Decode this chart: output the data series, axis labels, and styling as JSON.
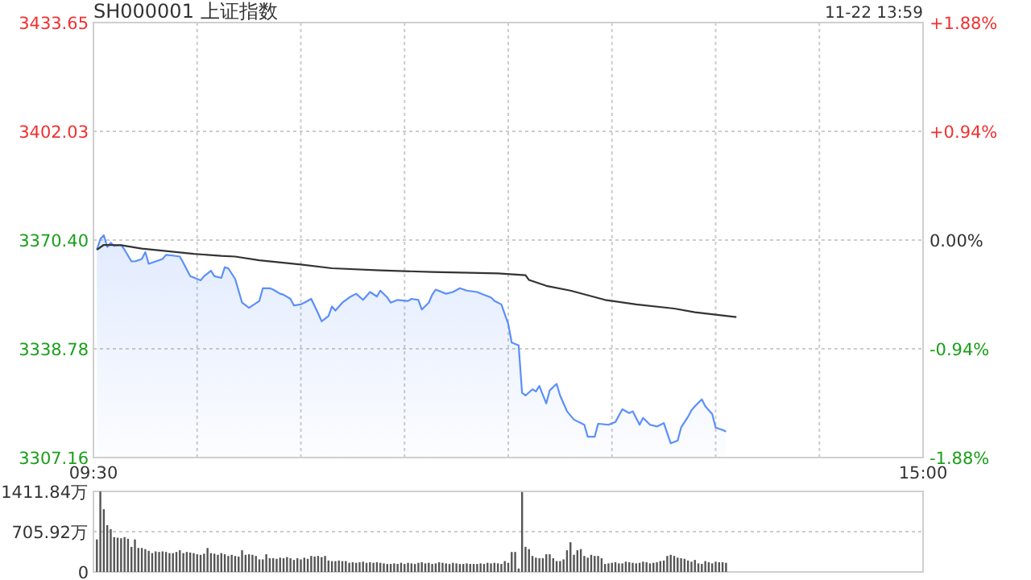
{
  "chart_data": [
    {
      "type": "line",
      "title": "SH000001 上证指数",
      "annotations": [
        "11-22 13:59"
      ],
      "categories": [
        "09:30",
        null,
        null,
        null,
        null,
        null,
        null,
        null,
        null,
        null,
        null,
        null,
        null,
        null,
        null,
        null,
        null,
        null,
        null,
        null,
        null,
        null,
        null,
        null,
        null,
        null,
        null,
        null,
        null,
        null,
        null,
        null,
        null,
        null,
        null,
        null,
        null,
        null,
        null,
        null,
        null,
        null,
        null,
        null,
        null,
        null,
        null,
        null,
        null,
        null,
        null,
        null,
        null,
        null,
        null,
        null,
        null,
        null,
        null,
        null,
        null,
        null,
        null,
        null,
        null,
        null,
        null,
        null,
        null,
        null,
        null,
        null,
        null,
        null,
        null,
        null,
        null,
        null,
        null,
        null,
        null,
        null,
        null,
        null,
        null,
        null,
        null,
        null,
        null,
        null,
        null,
        null,
        null,
        null,
        null,
        null,
        null,
        null,
        null,
        null,
        null,
        null,
        null,
        null,
        null,
        null,
        null,
        null,
        null,
        null,
        null,
        null,
        null,
        null,
        null,
        null,
        null,
        null,
        null,
        null,
        null,
        null,
        null,
        null,
        null,
        null,
        null,
        null,
        null,
        null,
        null,
        null,
        null,
        null,
        null,
        null,
        null,
        null,
        null,
        null,
        null,
        null,
        null,
        null,
        null,
        null,
        null,
        null,
        null,
        null,
        null,
        null,
        null,
        null,
        null,
        null,
        null,
        null,
        null,
        null,
        null,
        null,
        null,
        null,
        null,
        null,
        null,
        null,
        null,
        null,
        null,
        null,
        null,
        null,
        null,
        null,
        null,
        null,
        null,
        null,
        null,
        null,
        null,
        null,
        null,
        null,
        null,
        null,
        null,
        null,
        null,
        null,
        null,
        null,
        null,
        null,
        null,
        null,
        null,
        null,
        null,
        null,
        null,
        null,
        null,
        null,
        null,
        null,
        null,
        null,
        null,
        null,
        null,
        null,
        null,
        null,
        null,
        null,
        null,
        null,
        null,
        null,
        null,
        null,
        null,
        null,
        null,
        null,
        null,
        null,
        null,
        null,
        null,
        null,
        null,
        null,
        null,
        null,
        null,
        null,
        "15:00"
      ],
      "ylim": [
        3307.16,
        3433.65
      ],
      "yticks": [
        3307.16,
        3338.78,
        {
          "value": 3370.4,
          "label": "3370.40"
        },
        3402.03,
        3433.65
      ],
      "y2lim": [
        -1.88,
        1.88
      ],
      "y2ticks": [
        {
          "value": -1.88,
          "label": "-1.88%"
        },
        {
          "value": -0.94,
          "label": "-0.94%"
        },
        {
          "value": 0,
          "label": "0.00%"
        },
        {
          "value": 0.94,
          "label": "+0.94%"
        },
        {
          "value": 1.88,
          "label": "+1.88%"
        }
      ],
      "grid": true,
      "series": [
        {
          "type": "area",
          "color": "#5b8ff9",
          "values": [
            null,
            3367.6,
            3370.7,
            3371.8,
            3368.4,
            3369.6,
            3368.7,
            null,
            3369.0,
            3367.6,
            null,
            3364.2,
            3364.2,
            null,
            3364.9,
            3366.9,
            3363.5,
            null,
            3364.2,
            null,
            3364.9,
            3366.1,
            null,
            3365.9,
            null,
            3365.6,
            3363.8,
            null,
            3359.9,
            null,
            null,
            3358.7,
            3359.9,
            null,
            3361.5,
            3359.9,
            null,
            3359.4,
            3362.5,
            3362.2,
            null,
            3359.1,
            null,
            3352.2,
            null,
            3350.7,
            null,
            null,
            3352.7,
            3356.4,
            null,
            3356.4,
            3356.0,
            null,
            3354.8,
            3354.5,
            null,
            3353.3,
            3351.4,
            null,
            3351.7,
            3352.2,
            null,
            3353.3,
            null,
            3349.1,
            3346.8,
            null,
            3348.3,
            3351.1,
            3349.9,
            null,
            3352.2,
            null,
            3353.7,
            null,
            3354.8,
            null,
            3353.0,
            null,
            3355.3,
            null,
            3354.0,
            3355.7,
            null,
            3353.7,
            3352.2,
            null,
            3353.0,
            null,
            null,
            3352.7,
            3353.3,
            null,
            3353.0,
            3350.2,
            null,
            3352.2,
            3354.5,
            3356.0,
            null,
            null,
            3354.8,
            null,
            3355.3,
            null,
            3356.4,
            null,
            3355.7,
            null,
            null,
            3355.3,
            null,
            3354.5,
            null,
            3353.7,
            3352.7,
            null,
            3351.7,
            null,
            3346.0,
            3340.6,
            null,
            3339.8,
            3326.0,
            3325.2,
            null,
            3327.0,
            3326.4,
            3328.0,
            null,
            3322.9,
            3326.7,
            null,
            3328.6,
            3325.2,
            null,
            3320.6,
            null,
            3318.2,
            null,
            null,
            3316.7,
            3313.2,
            null,
            3313.2,
            3317.0,
            null,
            null,
            3316.7,
            null,
            3317.5,
            null,
            3321.2,
            null,
            3320.1,
            3320.6,
            null,
            3316.7,
            3318.7,
            null,
            3316.7,
            null,
            3316.2,
            null,
            3317.2,
            null,
            3311.3,
            null,
            3312.1,
            3315.9,
            null,
            3319.0,
            3320.9,
            3322.1,
            null,
            3324.1,
            3322.1,
            null,
            3319.8,
            3315.9,
            null,
            3315.2,
            3314.7,
            null,
            null,
            null,
            null,
            null,
            null,
            null,
            null,
            null,
            null,
            null,
            null,
            null,
            null,
            null,
            null,
            null,
            null,
            null,
            null,
            null,
            null,
            null,
            null,
            null,
            null,
            null,
            null,
            null,
            null,
            null,
            null,
            null,
            null,
            null,
            null,
            null,
            null,
            null,
            null,
            null,
            null,
            null,
            null,
            null,
            null,
            null,
            null,
            null,
            null,
            null,
            null,
            null,
            null,
            null,
            null,
            null
          ]
        },
        {
          "type": "line",
          "color": "#333333",
          "values": [
            null,
            3367.6,
            null,
            3369.0,
            null,
            null,
            null,
            null,
            3368.9,
            null,
            null,
            null,
            null,
            null,
            3367.9,
            null,
            null,
            null,
            null,
            null,
            null,
            3367.2,
            null,
            null,
            null,
            null,
            null,
            null,
            null,
            3366.4,
            null,
            null,
            null,
            null,
            null,
            null,
            null,
            3365.8,
            null,
            null,
            null,
            3365.6,
            null,
            null,
            null,
            null,
            null,
            null,
            3364.5,
            null,
            null,
            null,
            null,
            null,
            null,
            null,
            null,
            null,
            null,
            null,
            3363.3,
            null,
            null,
            null,
            null,
            null,
            null,
            null,
            null,
            3362.2,
            null,
            null,
            null,
            null,
            null,
            null,
            null,
            null,
            null,
            null,
            null,
            null,
            null,
            3361.6,
            null,
            null,
            null,
            null,
            null,
            null,
            null,
            null,
            null,
            null,
            null,
            null,
            null,
            null,
            3361.1,
            null,
            null,
            null,
            null,
            null,
            null,
            null,
            null,
            null,
            null,
            null,
            null,
            null,
            null,
            null,
            null,
            null,
            null,
            3360.7,
            null,
            null,
            null,
            null,
            null,
            null,
            null,
            3360.2,
            3358.8,
            null,
            null,
            null,
            null,
            3357.1,
            null,
            null,
            null,
            null,
            null,
            null,
            3355.7,
            null,
            null,
            null,
            null,
            null,
            null,
            null,
            null,
            null,
            3353.0,
            null,
            null,
            null,
            null,
            null,
            null,
            null,
            null,
            3351.7,
            null,
            null,
            null,
            null,
            null,
            null,
            null,
            null,
            null,
            null,
            3350.5,
            null,
            null,
            null,
            null,
            null,
            3349.4,
            null,
            null,
            null,
            null,
            null,
            null,
            null,
            null,
            null,
            null,
            null,
            3348.0,
            null,
            null,
            null,
            null,
            null,
            null,
            null,
            null,
            null,
            null,
            null,
            null,
            null,
            null,
            null,
            null,
            null,
            null,
            null,
            null,
            null,
            null,
            null,
            null,
            null,
            null,
            null,
            null,
            null,
            null,
            null,
            null,
            null,
            null,
            null,
            null,
            null,
            null,
            null,
            null,
            null,
            null,
            null,
            null,
            null,
            null,
            null,
            null,
            null,
            null,
            null,
            null,
            null,
            null
          ]
        }
      ]
    },
    {
      "type": "bar",
      "color": "#555555",
      "tick_labels": "y",
      "grid": "y",
      "ylim": [
        0,
        1411.84
      ],
      "yticks": [
        0,
        {
          "value": 705.92,
          "label": "705.92万"
        },
        {
          "value": 1411.84,
          "label": "1411.84万"
        }
      ],
      "categories": [
        null,
        null,
        null,
        null,
        null,
        null,
        null,
        null,
        null,
        null,
        null,
        null,
        null,
        null,
        null,
        null,
        null,
        null,
        null,
        null,
        null,
        null,
        null,
        null,
        null,
        null,
        null,
        null,
        null,
        null,
        null,
        null,
        null,
        null,
        null,
        null,
        null,
        null,
        null,
        null,
        null,
        null,
        null,
        null,
        null,
        null,
        null,
        null,
        null,
        null,
        null,
        null,
        null,
        null,
        null,
        null,
        null,
        null,
        null,
        null,
        null,
        null,
        null,
        null,
        null,
        null,
        null,
        null,
        null,
        null,
        null,
        null,
        null,
        null,
        null,
        null,
        null,
        null,
        null,
        null,
        null,
        null,
        null,
        null,
        null,
        null,
        null,
        null,
        null,
        null,
        null,
        null,
        null,
        null,
        null,
        null,
        null,
        null,
        null,
        null,
        null,
        null,
        null,
        null,
        null,
        null,
        null,
        null,
        null,
        null,
        null,
        null,
        null,
        null,
        null,
        null,
        null,
        null,
        null,
        null,
        null,
        null,
        null,
        null,
        null,
        null,
        null,
        null,
        null,
        null,
        null,
        null,
        null,
        null,
        null,
        null,
        null,
        null,
        null,
        null,
        null,
        null,
        null,
        null,
        null,
        null,
        null,
        null,
        null,
        null,
        null,
        null,
        null,
        null,
        null,
        null,
        null,
        null,
        null,
        null,
        null,
        null,
        null,
        null,
        null,
        null,
        null,
        null,
        null,
        null,
        null,
        null,
        null,
        null,
        null,
        null,
        null,
        null,
        null,
        null,
        null,
        null,
        null,
        null,
        null,
        null,
        null,
        null,
        null,
        null,
        null,
        null,
        null,
        null,
        null,
        null,
        null,
        null,
        null,
        null,
        null,
        null,
        null,
        null,
        null,
        null,
        null,
        null,
        null,
        null,
        null,
        null,
        null,
        null,
        null,
        null,
        null,
        null,
        null,
        null,
        null,
        null,
        null,
        null,
        null,
        null,
        null,
        null,
        null,
        null,
        null,
        null,
        null,
        null,
        null,
        null,
        null,
        null,
        null,
        null,
        null
      ],
      "values": [
        null,
        570,
        1410,
        1100,
        820,
        750,
        610,
        600,
        590,
        610,
        580,
        440,
        570,
        420,
        420,
        400,
        370,
        330,
        360,
        350,
        360,
        350,
        330,
        330,
        350,
        380,
        330,
        350,
        340,
        330,
        310,
        300,
        320,
        420,
        330,
        320,
        300,
        330,
        310,
        280,
        300,
        280,
        270,
        380,
        300,
        310,
        300,
        280,
        220,
        220,
        310,
        240,
        240,
        230,
        250,
        240,
        260,
        240,
        210,
        240,
        220,
        250,
        230,
        280,
        270,
        280,
        260,
        280,
        200,
        190,
        190,
        200,
        190,
        190,
        160,
        170,
        160,
        170,
        180,
        160,
        170,
        160,
        170,
        160,
        150,
        140,
        140,
        150,
        140,
        160,
        140,
        160,
        150,
        140,
        160,
        170,
        150,
        160,
        140,
        150,
        170,
        160,
        150,
        140,
        160,
        150,
        140,
        140,
        150,
        140,
        140,
        140,
        150,
        140,
        160,
        150,
        160,
        150,
        140,
        190,
        160,
        350,
        350,
        60,
        1400,
        440,
        400,
        280,
        250,
        240,
        240,
        310,
        310,
        240,
        190,
        190,
        220,
        380,
        520,
        300,
        380,
        400,
        280,
        250,
        300,
        280,
        280,
        240,
        140,
        150,
        160,
        170,
        150,
        150,
        180,
        170,
        160,
        150,
        160,
        180,
        170,
        150,
        160,
        170,
        190,
        200,
        280,
        300,
        280,
        250,
        240,
        230,
        200,
        180,
        210,
        150,
        140,
        190,
        170,
        150,
        180,
        170,
        170,
        160,
        null,
        null,
        null,
        null,
        null,
        null,
        null,
        null,
        null,
        null,
        null,
        null,
        null,
        null,
        null,
        null,
        null,
        null,
        null,
        null,
        null,
        null,
        null,
        null,
        null,
        null,
        null,
        null,
        null,
        null,
        null,
        null,
        null,
        null,
        null,
        null,
        null,
        null,
        null,
        null,
        null,
        null,
        null,
        null,
        null,
        null,
        null,
        null,
        null,
        null,
        null,
        null,
        null,
        null,
        null,
        null,
        null
      ]
    }
  ]
}
